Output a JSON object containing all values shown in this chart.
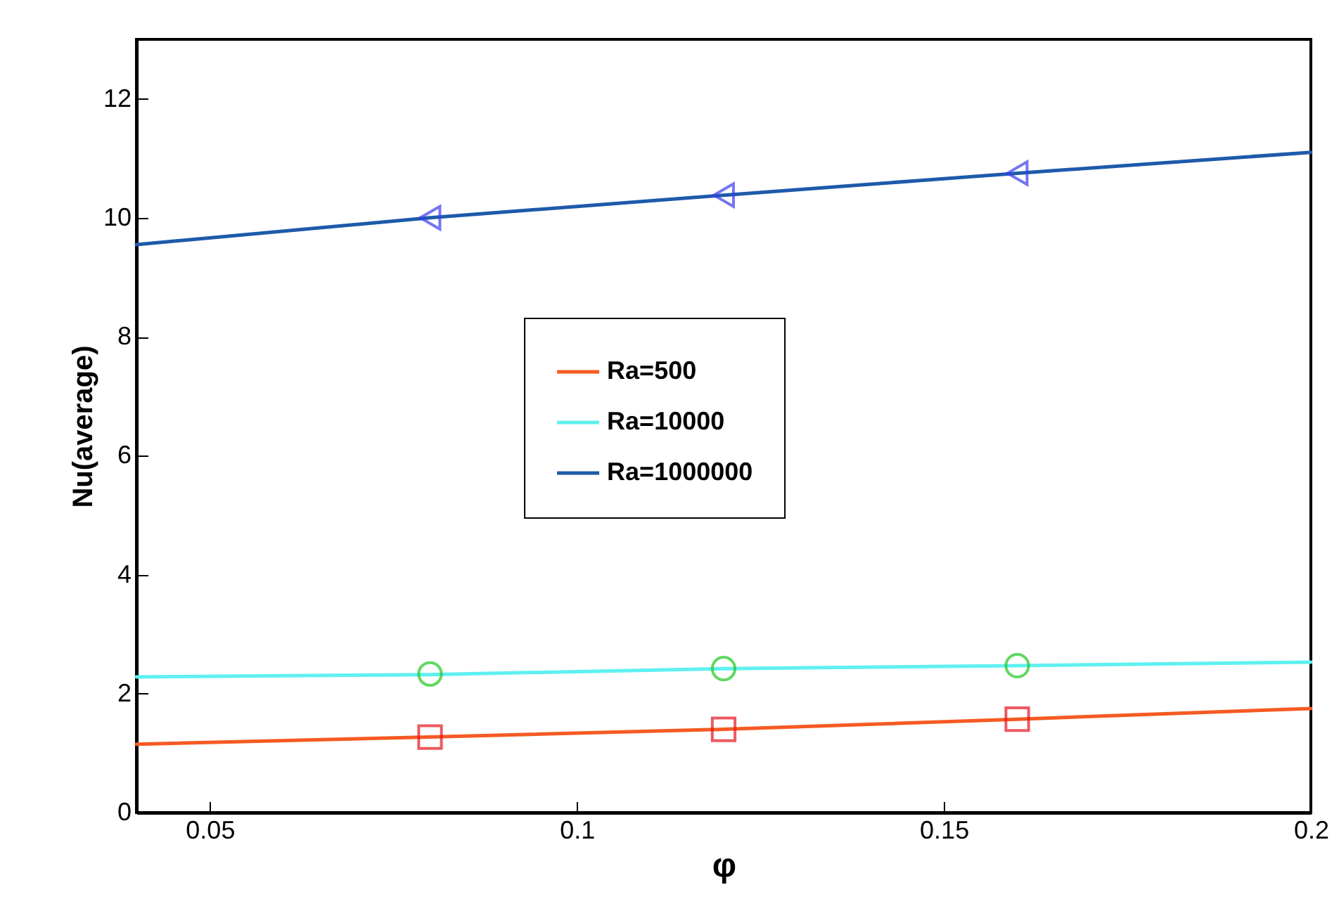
{
  "chart_data": {
    "type": "line",
    "xlabel": "φ",
    "ylabel": "Nu(average)",
    "xlim": [
      0.04,
      0.2
    ],
    "xticks": [
      0.05,
      0.1,
      0.15,
      0.2
    ],
    "ylim": [
      0,
      13
    ],
    "yticks": [
      0,
      2,
      4,
      6,
      8,
      10,
      12
    ],
    "grid": false,
    "legend": "center",
    "series": [
      {
        "name": "Ra=500",
        "type": "line",
        "marker": "none",
        "color": "#f55a23",
        "x": [
          0.04,
          0.08,
          0.12,
          0.16,
          0.2
        ],
        "values": [
          1.15,
          1.27,
          1.4,
          1.57,
          1.75
        ]
      },
      {
        "name": "Ra=10000",
        "type": "line",
        "marker": "none",
        "color": "#5ff0f0",
        "x": [
          0.04,
          0.08,
          0.12,
          0.16,
          0.2
        ],
        "values": [
          2.28,
          2.32,
          2.42,
          2.47,
          2.53
        ]
      },
      {
        "name": "Ra=1000000",
        "type": "line",
        "marker": "none",
        "color": "#1e5aaa",
        "x": [
          0.04,
          0.08,
          0.12,
          0.16,
          0.2
        ],
        "values": [
          9.55,
          10.0,
          10.38,
          10.75,
          11.1
        ]
      },
      {
        "type": "scatter",
        "marker": "square",
        "color": "#e6141e",
        "x": [
          0.08,
          0.12,
          0.16
        ],
        "values": [
          1.27,
          1.4,
          1.57
        ]
      },
      {
        "type": "scatter",
        "marker": "circle",
        "color": "#1ec81e",
        "x": [
          0.08,
          0.12,
          0.16
        ],
        "values": [
          2.33,
          2.42,
          2.47
        ]
      },
      {
        "type": "scatter",
        "marker": "triangle",
        "color": "#3c3cf0",
        "x": [
          0.08,
          0.12,
          0.16
        ],
        "values": [
          10.0,
          10.38,
          10.75
        ]
      }
    ]
  }
}
